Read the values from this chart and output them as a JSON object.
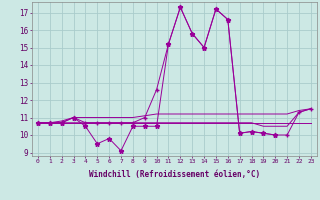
{
  "xlabel": "Windchill (Refroidissement éolien,°C)",
  "background_color": "#cce8e4",
  "grid_color": "#aacccc",
  "line_color": "#990099",
  "x": [
    0,
    1,
    2,
    3,
    4,
    5,
    6,
    7,
    8,
    9,
    10,
    11,
    12,
    13,
    14,
    15,
    16,
    17,
    18,
    19,
    20,
    21,
    22,
    23
  ],
  "spiky": [
    10.7,
    10.7,
    10.7,
    11.0,
    10.5,
    9.5,
    9.8,
    9.1,
    10.5,
    10.5,
    10.5,
    15.2,
    17.3,
    15.8,
    15.0,
    17.2,
    16.6,
    10.1,
    10.2,
    10.1,
    10.0,
    null,
    null,
    null
  ],
  "diagonal": [
    10.7,
    10.7,
    10.7,
    11.0,
    10.7,
    10.7,
    10.7,
    10.7,
    10.7,
    11.0,
    12.6,
    15.2,
    17.3,
    15.8,
    15.0,
    17.2,
    16.6,
    10.1,
    10.2,
    10.1,
    10.0,
    10.0,
    11.3,
    11.5
  ],
  "flat1": [
    10.7,
    10.7,
    10.7,
    10.7,
    10.7,
    10.7,
    10.7,
    10.7,
    10.7,
    10.7,
    10.7,
    10.7,
    10.7,
    10.7,
    10.7,
    10.7,
    10.7,
    10.7,
    10.7,
    10.7,
    10.7,
    10.7,
    10.7,
    10.7
  ],
  "rising": [
    10.7,
    10.7,
    10.8,
    11.0,
    11.0,
    11.0,
    11.0,
    11.0,
    11.0,
    11.1,
    11.2,
    11.2,
    11.2,
    11.2,
    11.2,
    11.2,
    11.2,
    11.2,
    11.2,
    11.2,
    11.2,
    11.2,
    11.4,
    11.5
  ],
  "flat2": [
    10.7,
    10.7,
    10.7,
    10.7,
    10.7,
    10.7,
    10.7,
    10.7,
    10.7,
    10.7,
    10.7,
    10.7,
    10.7,
    10.7,
    10.7,
    10.7,
    10.7,
    10.7,
    10.7,
    10.5,
    10.5,
    10.5,
    11.3,
    11.5
  ],
  "ylim": [
    8.8,
    17.6
  ],
  "yticks": [
    9,
    10,
    11,
    12,
    13,
    14,
    15,
    16,
    17
  ],
  "xticks": [
    0,
    1,
    2,
    3,
    4,
    5,
    6,
    7,
    8,
    9,
    10,
    11,
    12,
    13,
    14,
    15,
    16,
    17,
    18,
    19,
    20,
    21,
    22,
    23
  ]
}
